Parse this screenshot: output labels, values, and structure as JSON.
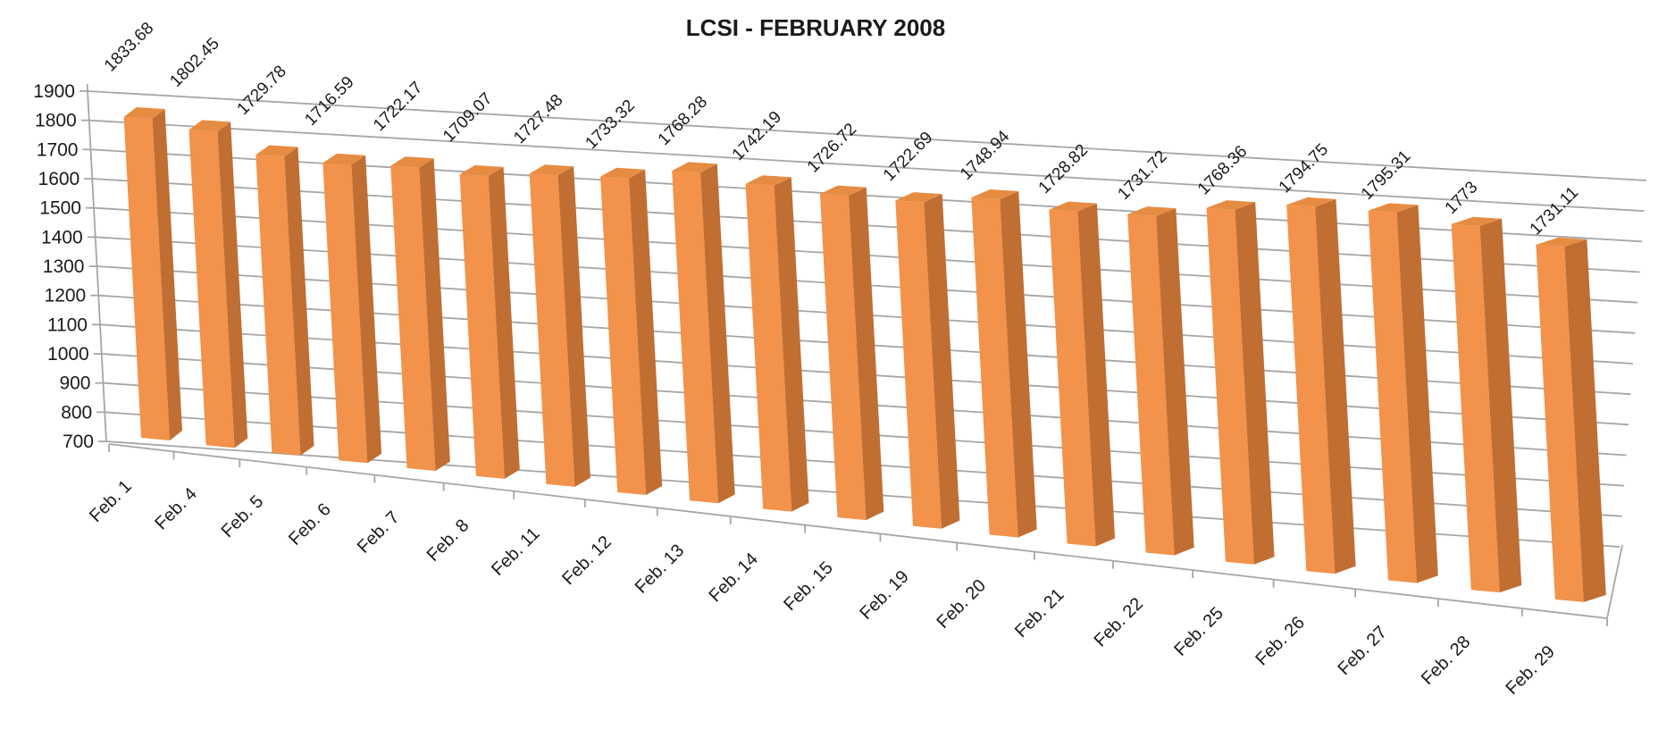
{
  "chart_data": {
    "type": "bar",
    "style": "3d-column",
    "title": "LCSI - FEBRUARY 2008",
    "categories": [
      "Feb. 1",
      "Feb. 4",
      "Feb. 5",
      "Feb. 6",
      "Feb. 7",
      "Feb. 8",
      "Feb. 11",
      "Feb. 12",
      "Feb. 13",
      "Feb. 14",
      "Feb. 15",
      "Feb. 19",
      "Feb. 20",
      "Feb. 21",
      "Feb. 22",
      "Feb. 25",
      "Feb. 26",
      "Feb. 27",
      "Feb. 28",
      "Feb. 29"
    ],
    "values": [
      1833.68,
      1802.45,
      1729.78,
      1716.59,
      1722.17,
      1709.07,
      1727.48,
      1733.32,
      1768.28,
      1742.19,
      1726.72,
      1722.69,
      1748.94,
      1728.82,
      1731.72,
      1768.36,
      1794.75,
      1795.31,
      1773,
      1731.11
    ],
    "labels": [
      "1833.68",
      "1802.45",
      "1729.78",
      "1716.59",
      "1722.17",
      "1709.07",
      "1727.48",
      "1733.32",
      "1768.28",
      "1742.19",
      "1726.72",
      "1722.69",
      "1748.94",
      "1728.82",
      "1731.72",
      "1768.36",
      "1794.75",
      "1795.31",
      "1773",
      "1731.11"
    ],
    "xlabel": "",
    "ylabel": "",
    "ylim": [
      700,
      1900
    ],
    "yticks": [
      700,
      800,
      900,
      1000,
      1100,
      1200,
      1300,
      1400,
      1500,
      1600,
      1700,
      1800,
      1900
    ],
    "grid": true,
    "legend_position": "none",
    "colors": {
      "bar_front": "#F2924B",
      "bar_side": "#C06E31",
      "bar_top": "#E68C42",
      "gridline": "#A6A6A6",
      "text": "#1A1A1A",
      "background": "#FFFFFF"
    }
  }
}
